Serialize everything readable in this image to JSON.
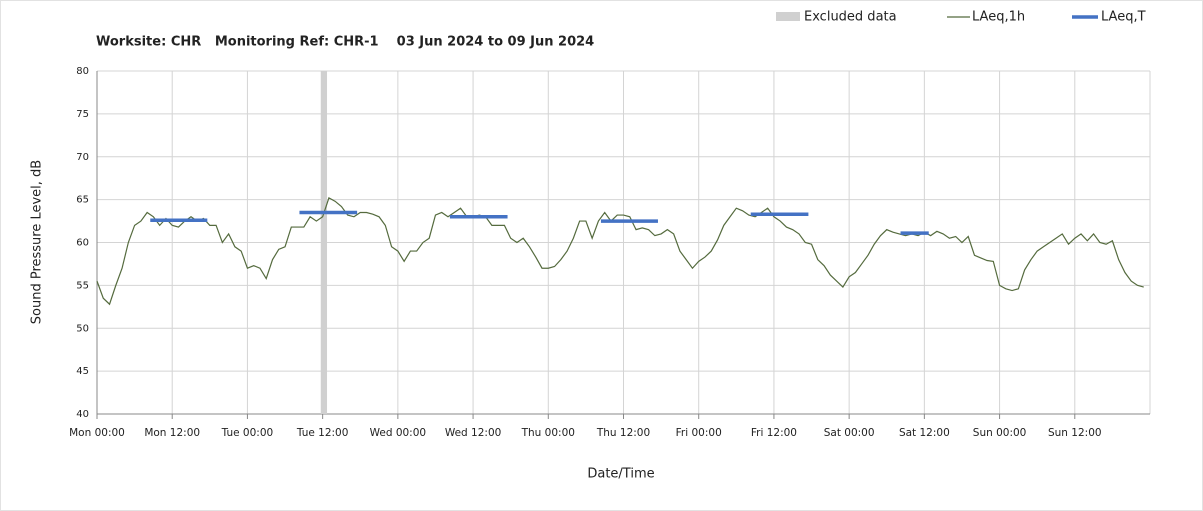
{
  "chart_data": {
    "type": "line",
    "title": "Worksite: CHR   Monitoring Ref: CHR-1    03 Jun 2024 to 09 Jun 2024",
    "xlabel": "Date/Time",
    "ylabel": "Sound Pressure Level, dB",
    "xlim": [
      0,
      168
    ],
    "ylim": [
      40,
      80
    ],
    "yticks": [
      40,
      45,
      50,
      55,
      60,
      65,
      70,
      75,
      80
    ],
    "xticks": [
      {
        "value": 0,
        "label": "Mon 00:00"
      },
      {
        "value": 12,
        "label": "Mon 12:00"
      },
      {
        "value": 24,
        "label": "Tue 00:00"
      },
      {
        "value": 36,
        "label": "Tue 12:00"
      },
      {
        "value": 48,
        "label": "Wed 00:00"
      },
      {
        "value": 60,
        "label": "Wed 12:00"
      },
      {
        "value": 72,
        "label": "Thu 00:00"
      },
      {
        "value": 84,
        "label": "Thu 12:00"
      },
      {
        "value": 96,
        "label": "Fri 00:00"
      },
      {
        "value": 108,
        "label": "Fri 12:00"
      },
      {
        "value": 120,
        "label": "Sat 00:00"
      },
      {
        "value": 132,
        "label": "Sat 12:00"
      },
      {
        "value": 144,
        "label": "Sun 00:00"
      },
      {
        "value": 156,
        "label": "Sun 12:00"
      }
    ],
    "grid": true,
    "excluded": {
      "name": "Excluded data",
      "color": "#d0d0d0",
      "ranges": [
        {
          "start": 35.7,
          "end": 36.7
        }
      ]
    },
    "series": [
      {
        "name": "LAeq,1h",
        "color": "#556b3e",
        "x": [
          0,
          1,
          2,
          3,
          4,
          5,
          6,
          7,
          8,
          9,
          10,
          11,
          12,
          13,
          14,
          15,
          16,
          17,
          18,
          19,
          20,
          21,
          22,
          23,
          24,
          25,
          26,
          27,
          28,
          29,
          30,
          31,
          32,
          33,
          34,
          35,
          36,
          37,
          38,
          39,
          40,
          41,
          42,
          43,
          44,
          45,
          46,
          47,
          48,
          49,
          50,
          51,
          52,
          53,
          54,
          55,
          56,
          57,
          58,
          59,
          60,
          61,
          62,
          63,
          64,
          65,
          66,
          67,
          68,
          69,
          70,
          71,
          72,
          73,
          74,
          75,
          76,
          77,
          78,
          79,
          80,
          81,
          82,
          83,
          84,
          85,
          86,
          87,
          88,
          89,
          90,
          91,
          92,
          93,
          94,
          95,
          96,
          97,
          98,
          99,
          100,
          101,
          102,
          103,
          104,
          105,
          106,
          107,
          108,
          109,
          110,
          111,
          112,
          113,
          114,
          115,
          116,
          117,
          118,
          119,
          120,
          121,
          122,
          123,
          124,
          125,
          126,
          127,
          128,
          129,
          130,
          131,
          132,
          133,
          134,
          135,
          136,
          137,
          138,
          139,
          140,
          141,
          142,
          143,
          144,
          145,
          146,
          147,
          148,
          149,
          150,
          151,
          152,
          153,
          154,
          155,
          156,
          157,
          158,
          159,
          160,
          161,
          162,
          163,
          164,
          165,
          166,
          167
        ],
        "values": [
          55.5,
          53.5,
          52.8,
          55,
          57,
          60,
          62,
          62.5,
          63.5,
          63,
          62,
          62.8,
          62,
          61.8,
          62.5,
          63,
          62.5,
          62.8,
          62,
          62,
          60,
          61,
          59.5,
          59,
          57,
          57.3,
          57,
          55.8,
          58,
          59.2,
          59.5,
          61.8,
          61.8,
          61.8,
          63,
          62.5,
          63,
          65.2,
          64.8,
          64.2,
          63.2,
          63,
          63.5,
          63.5,
          63.3,
          63,
          62,
          59.5,
          59,
          57.8,
          59,
          59,
          60,
          60.5,
          63.2,
          63.5,
          63,
          63.5,
          64,
          63,
          63,
          63.2,
          63,
          62,
          62,
          62,
          60.5,
          60,
          60.5,
          59.5,
          58.3,
          57,
          57,
          57.2,
          58,
          59,
          60.5,
          62.5,
          62.5,
          60.5,
          62.5,
          63.5,
          62.5,
          63.2,
          63.2,
          63,
          61.5,
          61.7,
          61.5,
          60.8,
          61,
          61.5,
          61,
          59,
          58,
          57,
          57.8,
          58.3,
          59,
          60.3,
          62,
          63,
          64,
          63.7,
          63.2,
          63,
          63.5,
          64,
          63,
          62.5,
          61.8,
          61.5,
          61,
          60,
          59.8,
          58,
          57.3,
          56.2,
          55.5,
          54.8,
          56,
          56.5,
          57.5,
          58.5,
          59.8,
          60.8,
          61.5,
          61.2,
          61,
          60.8,
          61,
          60.8,
          61.2,
          60.8,
          61.3,
          61,
          60.5,
          60.7,
          60,
          60.7,
          58.5,
          58.2,
          57.9,
          57.8,
          55,
          54.6,
          54.4,
          54.6,
          56.8,
          58,
          59,
          59.5,
          60,
          60.5,
          61,
          59.8,
          60.5,
          61,
          60.2,
          61,
          60,
          59.8,
          60.2,
          58,
          56.5,
          55.5,
          55,
          54.8
        ]
      },
      {
        "name": "LAeq,T",
        "color": "#4472c4",
        "segments": [
          {
            "start": 8.5,
            "end": 17.6,
            "value": 62.6
          },
          {
            "start": 32.3,
            "end": 41.5,
            "value": 63.5
          },
          {
            "start": 56.3,
            "end": 65.5,
            "value": 63.0
          },
          {
            "start": 80.4,
            "end": 89.5,
            "value": 62.5
          },
          {
            "start": 104.3,
            "end": 113.5,
            "value": 63.3
          },
          {
            "start": 128.2,
            "end": 132.7,
            "value": 61.1
          }
        ]
      }
    ]
  }
}
